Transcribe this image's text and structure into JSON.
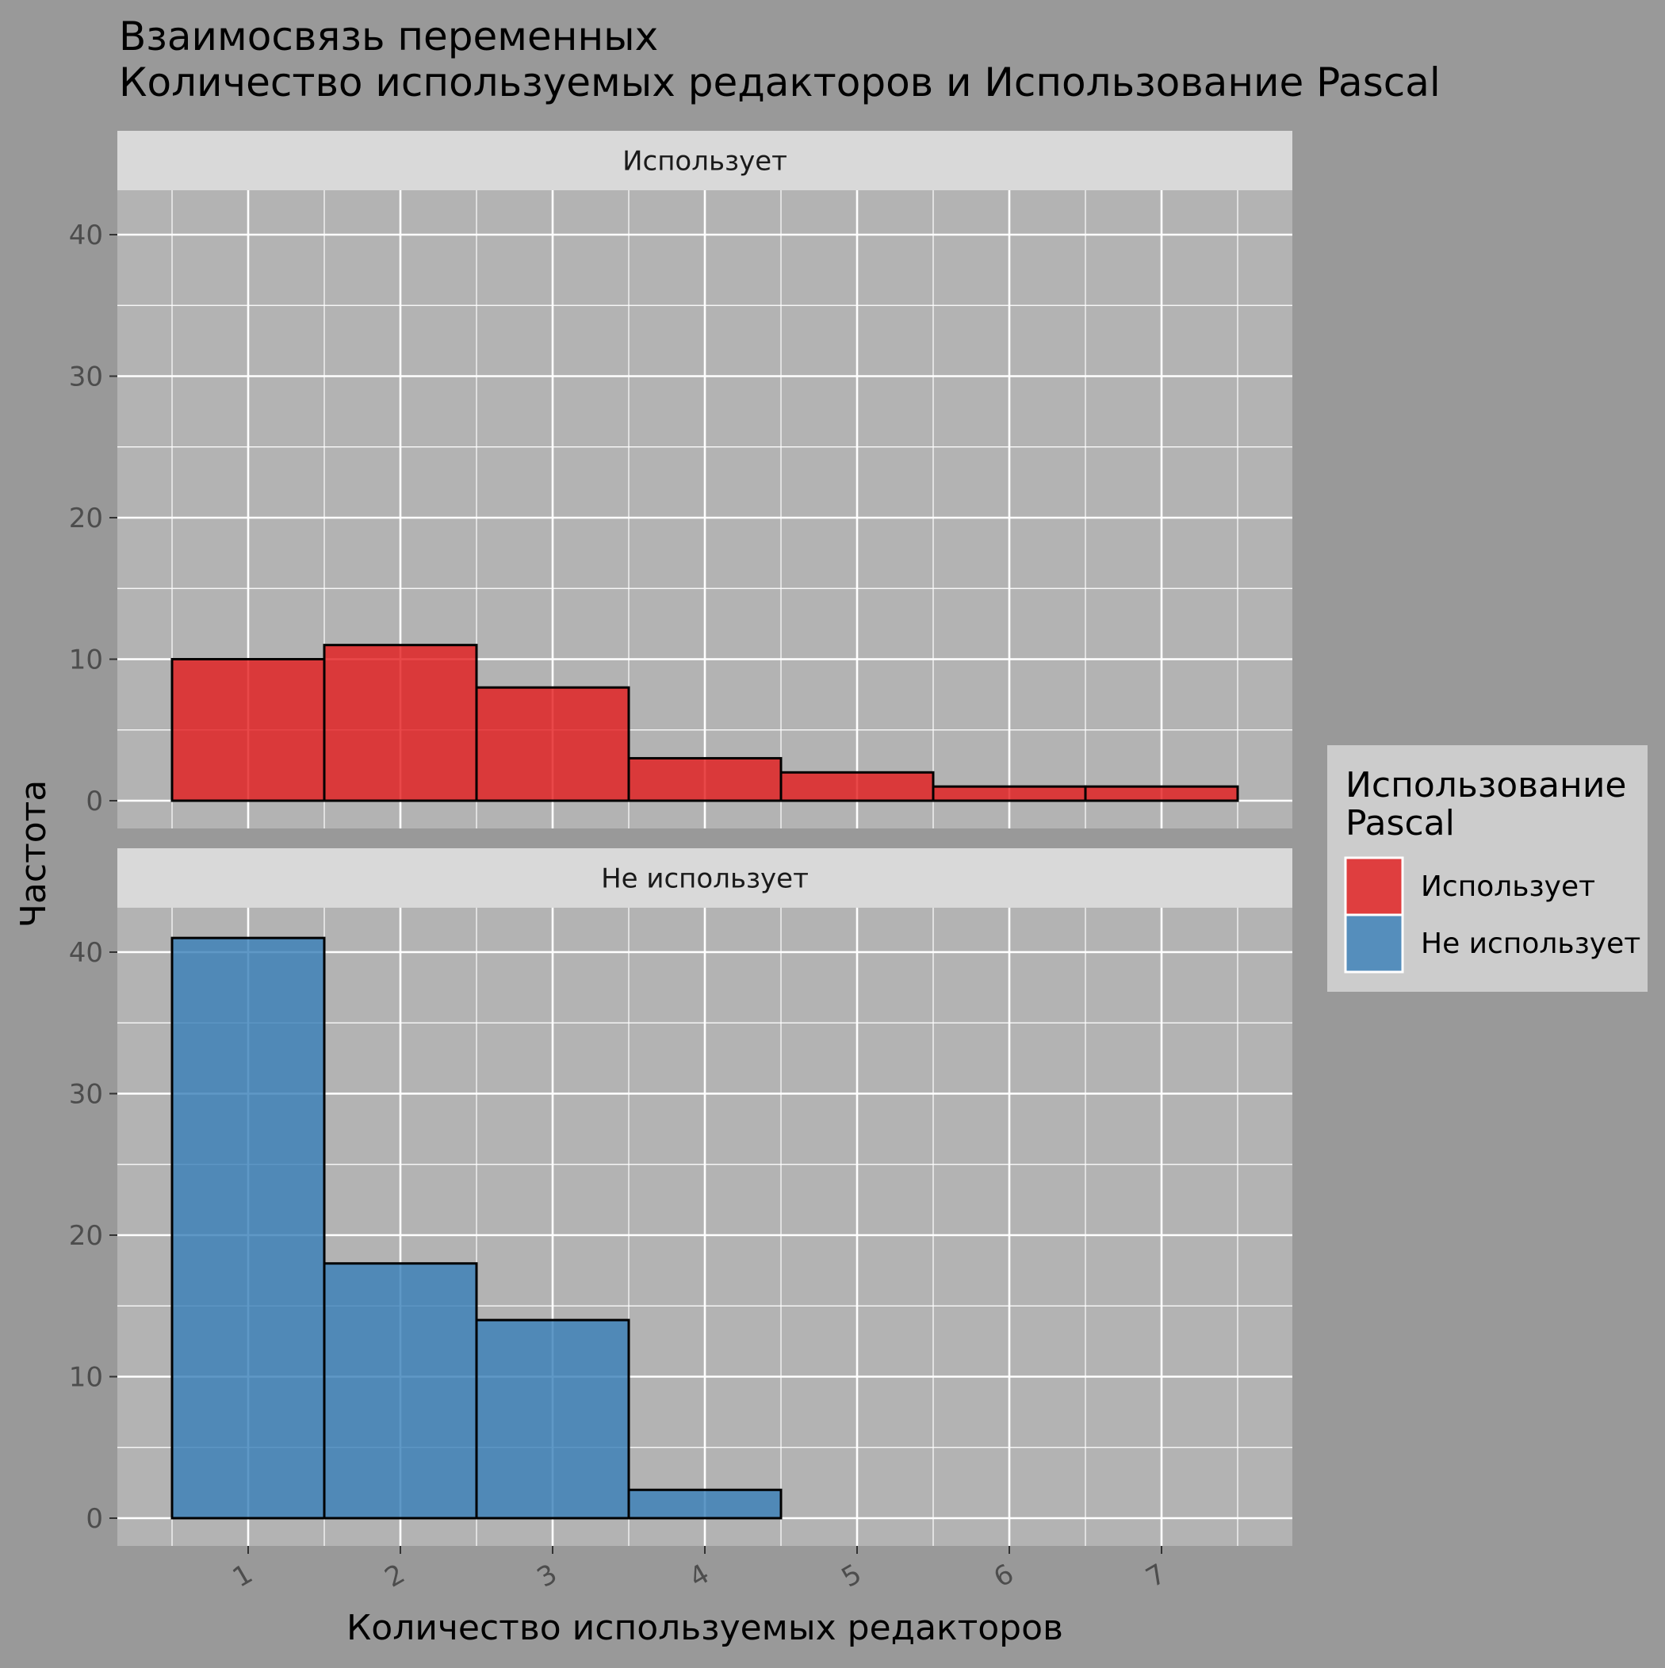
{
  "chart_data": {
    "type": "bar",
    "title": "Взаимосвязь переменных\n Количество используемых редакторов и Использование Pascal",
    "title_lines": [
      "Взаимосвязь переменных",
      " Количество используемых редакторов и Использование Pascal"
    ],
    "xlabel": "Количество используемых редакторов",
    "ylabel": "Частота",
    "categories": [
      "1",
      "2",
      "3",
      "4",
      "5",
      "6",
      "7"
    ],
    "ylim": [
      -2,
      42
    ],
    "yticks": [
      0,
      10,
      20,
      30,
      40
    ],
    "grid": true,
    "legend": {
      "title": "Использование\nPascal",
      "title_lines": [
        "Использование",
        "Pascal"
      ],
      "placement": "right",
      "entries": [
        "Использует",
        "Не использует"
      ]
    },
    "series": [
      {
        "name": "Использует",
        "color": "#E41A1C",
        "values": [
          10,
          11,
          8,
          3,
          2,
          1,
          1
        ]
      },
      {
        "name": "Не использует",
        "color": "#377EB8",
        "values": [
          41,
          18,
          14,
          2,
          0,
          0,
          0
        ]
      }
    ],
    "facets": [
      "Использует",
      "Не использует"
    ]
  },
  "colors": {
    "background": "#999999",
    "panel": "#B3B3B3",
    "strip": "#D9D9D9",
    "legend_bg": "#CCCCCC",
    "grid": "#FFFFFF",
    "bar_outline": "#000000"
  }
}
